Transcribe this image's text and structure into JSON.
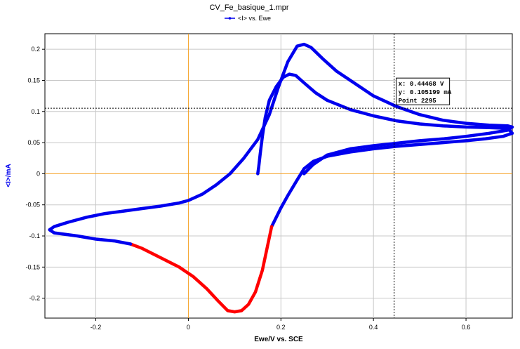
{
  "chart_data": {
    "type": "line",
    "title": "CV_Fe_basique_1.mpr",
    "xlabel": "Ewe/V vs. SCE",
    "ylabel": "<I>/mA",
    "xlim": [
      -0.31,
      0.7
    ],
    "ylim": [
      -0.232,
      0.225
    ],
    "x_ticks": [
      -0.2,
      0,
      0.2,
      0.4,
      0.6
    ],
    "x_tick_labels": [
      "-0.2",
      "0",
      "0.2",
      "0.4",
      "0.6"
    ],
    "y_ticks": [
      0.2,
      0.15,
      0.1,
      0.05,
      0,
      -0.05,
      -0.1,
      -0.15,
      -0.2
    ],
    "y_tick_labels": [
      "0.2",
      "0.15",
      "0.1",
      "0.05",
      "0",
      "-0.05",
      "-0.1",
      "-0.15",
      "-0.2"
    ],
    "grid": true,
    "legend": {
      "position": "top-center",
      "label": "<I> vs. Ewe",
      "color": "#0000ee"
    },
    "origin_line_color": "#f5a020",
    "cursor": {
      "x": 0.44468,
      "y": 0.105199,
      "label_x": "x: 0.44468 V",
      "label_y": "y: 0.105199 mA",
      "label_point": "Point 2295"
    },
    "series": [
      {
        "name": "<I> vs. Ewe",
        "color": "#0000ee",
        "segments": [
          {
            "color": "#0000ee",
            "points": [
              [
                0.15,
                0.0
              ],
              [
                0.152,
                0.01
              ],
              [
                0.155,
                0.03
              ],
              [
                0.16,
                0.06
              ],
              [
                0.166,
                0.09
              ],
              [
                0.175,
                0.118
              ],
              [
                0.19,
                0.14
              ],
              [
                0.205,
                0.155
              ],
              [
                0.218,
                0.16
              ],
              [
                0.232,
                0.158
              ],
              [
                0.25,
                0.146
              ],
              [
                0.275,
                0.13
              ],
              [
                0.3,
                0.118
              ],
              [
                0.35,
                0.103
              ],
              [
                0.4,
                0.093
              ],
              [
                0.45,
                0.085
              ],
              [
                0.5,
                0.08
              ],
              [
                0.55,
                0.077
              ],
              [
                0.6,
                0.075
              ],
              [
                0.65,
                0.074
              ],
              [
                0.69,
                0.073
              ],
              [
                0.7,
                0.065
              ],
              [
                0.68,
                0.06
              ],
              [
                0.64,
                0.056
              ],
              [
                0.6,
                0.053
              ],
              [
                0.55,
                0.05
              ],
              [
                0.5,
                0.047
              ],
              [
                0.45,
                0.044
              ],
              [
                0.4,
                0.04
              ],
              [
                0.35,
                0.035
              ],
              [
                0.3,
                0.028
              ],
              [
                0.27,
                0.02
              ],
              [
                0.25,
                0.008
              ],
              [
                0.235,
                -0.01
              ],
              [
                0.215,
                -0.035
              ],
              [
                0.2,
                -0.055
              ],
              [
                0.18,
                -0.085
              ]
            ]
          },
          {
            "color": "#ff0000",
            "points": [
              [
                0.18,
                -0.085
              ],
              [
                0.17,
                -0.12
              ],
              [
                0.16,
                -0.155
              ],
              [
                0.145,
                -0.19
              ],
              [
                0.13,
                -0.21
              ],
              [
                0.115,
                -0.22
              ],
              [
                0.1,
                -0.222
              ],
              [
                0.085,
                -0.22
              ],
              [
                0.065,
                -0.205
              ],
              [
                0.04,
                -0.185
              ],
              [
                0.01,
                -0.165
              ],
              [
                -0.02,
                -0.15
              ],
              [
                -0.06,
                -0.135
              ],
              [
                -0.1,
                -0.12
              ],
              [
                -0.125,
                -0.113
              ]
            ]
          },
          {
            "color": "#0000ee",
            "points": [
              [
                -0.125,
                -0.113
              ],
              [
                -0.16,
                -0.108
              ],
              [
                -0.2,
                -0.105
              ],
              [
                -0.24,
                -0.1
              ],
              [
                -0.27,
                -0.097
              ],
              [
                -0.29,
                -0.095
              ],
              [
                -0.3,
                -0.09
              ],
              [
                -0.29,
                -0.085
              ],
              [
                -0.26,
                -0.078
              ],
              [
                -0.22,
                -0.07
              ],
              [
                -0.18,
                -0.064
              ],
              [
                -0.14,
                -0.06
              ],
              [
                -0.1,
                -0.056
              ],
              [
                -0.06,
                -0.052
              ],
              [
                -0.02,
                -0.047
              ],
              [
                0.0,
                -0.043
              ],
              [
                0.03,
                -0.033
              ],
              [
                0.06,
                -0.018
              ],
              [
                0.09,
                0.0
              ],
              [
                0.12,
                0.025
              ],
              [
                0.15,
                0.055
              ],
              [
                0.175,
                0.095
              ],
              [
                0.195,
                0.14
              ],
              [
                0.215,
                0.18
              ],
              [
                0.235,
                0.205
              ],
              [
                0.25,
                0.208
              ],
              [
                0.265,
                0.203
              ],
              [
                0.29,
                0.185
              ],
              [
                0.32,
                0.165
              ],
              [
                0.36,
                0.145
              ],
              [
                0.4,
                0.125
              ],
              [
                0.45,
                0.108
              ],
              [
                0.5,
                0.095
              ],
              [
                0.55,
                0.086
              ],
              [
                0.6,
                0.081
              ],
              [
                0.65,
                0.078
              ],
              [
                0.69,
                0.077
              ],
              [
                0.7,
                0.075
              ],
              [
                0.69,
                0.07
              ],
              [
                0.65,
                0.065
              ],
              [
                0.6,
                0.06
              ],
              [
                0.55,
                0.056
              ],
              [
                0.5,
                0.053
              ],
              [
                0.45,
                0.049
              ],
              [
                0.4,
                0.045
              ],
              [
                0.35,
                0.04
              ],
              [
                0.3,
                0.03
              ],
              [
                0.27,
                0.015
              ],
              [
                0.25,
                0.0
              ]
            ]
          }
        ]
      }
    ]
  }
}
